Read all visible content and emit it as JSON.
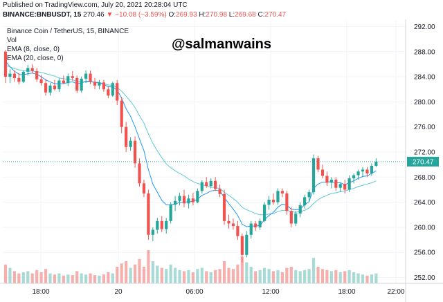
{
  "header": {
    "published": "Published on TradingView.com, July 20, 2021 20:28:04 UTC",
    "symbol": "BINANCE:BNBUSDT, 15",
    "last": "270.46",
    "arrow": "▼",
    "change": "−10.08 (−3.59%)",
    "o_label": "O:",
    "o": "269.93",
    "h_label": "H:",
    "h": "270.98",
    "l_label": "L:",
    "l": "269.68",
    "c_label": "C:",
    "c": "270.47"
  },
  "legend": {
    "title": "Binance Coin / TetherUS, 15, BINANCE",
    "vol": "Vol",
    "ema8": "EMA (8, close, 0)",
    "ema20": "EMA (20, close, 0)"
  },
  "watermark": "@salmanwains",
  "colors": {
    "up": "#26a69a",
    "down": "#ef5350",
    "vol_up": "#a8dad6",
    "vol_down": "#f5b0ae",
    "ema8": "#2196f3",
    "ema20": "#5cc8d6",
    "grid": "#f0f3fa",
    "axis": "#d1d4dc",
    "price_line": "#26a69a"
  },
  "chart_data": {
    "type": "candlestick",
    "title": "Binance Coin / TetherUS, 15, BINANCE",
    "last_price": 270.47,
    "last_price_label": "270.47",
    "y_ticks": [
      252,
      256,
      260,
      264,
      268,
      272,
      276,
      280,
      284,
      288,
      292
    ],
    "y_tick_labels": [
      "252.00",
      "256.00",
      "260.00",
      "264.00",
      "268.00",
      "272.00",
      "276.00",
      "280.00",
      "284.00",
      "288.00",
      "292.00"
    ],
    "x_ticks": [
      "18:00",
      "20",
      "06:00",
      "12:00",
      "18:00",
      "22:00"
    ],
    "candles": [
      [
        288.0,
        288.3,
        283.0,
        284.0
      ],
      [
        284.0,
        285.2,
        283.0,
        284.5
      ],
      [
        284.5,
        285.0,
        283.2,
        283.8
      ],
      [
        283.8,
        284.6,
        282.8,
        283.2
      ],
      [
        283.2,
        285.0,
        283.0,
        284.8
      ],
      [
        284.8,
        285.9,
        284.2,
        285.4
      ],
      [
        285.4,
        286.0,
        284.5,
        284.9
      ],
      [
        284.9,
        285.4,
        283.2,
        283.6
      ],
      [
        283.6,
        284.3,
        282.6,
        283.0
      ],
      [
        283.0,
        283.7,
        281.0,
        281.5
      ],
      [
        281.5,
        283.0,
        281.0,
        282.6
      ],
      [
        282.6,
        283.5,
        281.8,
        282.0
      ],
      [
        282.0,
        283.8,
        281.6,
        283.4
      ],
      [
        283.4,
        284.2,
        282.8,
        283.0
      ],
      [
        283.0,
        284.5,
        282.5,
        284.1
      ],
      [
        284.1,
        284.9,
        283.4,
        283.8
      ],
      [
        283.8,
        284.2,
        281.4,
        281.8
      ],
      [
        281.8,
        284.0,
        281.5,
        283.7
      ],
      [
        283.7,
        285.0,
        283.0,
        284.5
      ],
      [
        284.5,
        285.0,
        282.8,
        283.2
      ],
      [
        283.2,
        283.8,
        282.0,
        282.6
      ],
      [
        282.6,
        283.5,
        282.0,
        283.1
      ],
      [
        283.1,
        283.5,
        281.6,
        282.0
      ],
      [
        282.0,
        282.5,
        280.6,
        281.0
      ],
      [
        281.0,
        283.2,
        280.8,
        283.0
      ],
      [
        283.0,
        283.5,
        279.5,
        280.2
      ],
      [
        280.2,
        280.8,
        275.0,
        276.0
      ],
      [
        276.0,
        276.8,
        272.0,
        272.8
      ],
      [
        272.8,
        274.4,
        272.2,
        273.8
      ],
      [
        273.8,
        274.5,
        269.5,
        270.2
      ],
      [
        270.2,
        271.0,
        266.5,
        267.0
      ],
      [
        267.0,
        267.6,
        264.8,
        265.4
      ],
      [
        265.4,
        266.0,
        258.0,
        258.8
      ],
      [
        258.8,
        260.0,
        257.8,
        259.6
      ],
      [
        259.6,
        261.5,
        259.0,
        261.0
      ],
      [
        261.0,
        261.8,
        259.2,
        259.7
      ],
      [
        259.7,
        261.5,
        259.0,
        261.0
      ],
      [
        261.0,
        264.0,
        260.6,
        263.6
      ],
      [
        263.6,
        265.0,
        262.6,
        264.2
      ],
      [
        264.2,
        265.5,
        263.5,
        265.0
      ],
      [
        265.0,
        266.0,
        263.2,
        263.8
      ],
      [
        263.8,
        265.2,
        263.0,
        264.6
      ],
      [
        264.6,
        265.5,
        263.5,
        264.0
      ],
      [
        264.0,
        266.2,
        263.8,
        265.8
      ],
      [
        265.8,
        267.5,
        265.4,
        267.2
      ],
      [
        267.2,
        268.0,
        266.3,
        266.6
      ],
      [
        266.6,
        267.8,
        266.2,
        267.4
      ],
      [
        267.4,
        268.0,
        265.8,
        266.1
      ],
      [
        266.1,
        266.8,
        264.8,
        265.3
      ],
      [
        265.3,
        266.0,
        260.4,
        261.0
      ],
      [
        261.0,
        262.0,
        259.8,
        260.6
      ],
      [
        260.6,
        261.4,
        259.6,
        260.2
      ],
      [
        260.2,
        261.0,
        258.0,
        258.6
      ],
      [
        258.6,
        259.0,
        254.4,
        255.6
      ],
      [
        255.6,
        259.4,
        255.2,
        258.8
      ],
      [
        258.8,
        261.0,
        258.2,
        260.6
      ],
      [
        260.6,
        261.0,
        259.4,
        260.0
      ],
      [
        260.0,
        261.4,
        259.6,
        261.0
      ],
      [
        261.0,
        264.0,
        260.8,
        263.6
      ],
      [
        263.6,
        265.0,
        262.8,
        264.4
      ],
      [
        264.4,
        265.4,
        263.6,
        264.0
      ],
      [
        264.0,
        266.2,
        263.6,
        265.8
      ],
      [
        265.8,
        266.2,
        264.8,
        265.4
      ],
      [
        265.4,
        265.8,
        262.0,
        262.6
      ],
      [
        262.6,
        263.2,
        260.0,
        260.6
      ],
      [
        260.6,
        262.6,
        260.2,
        262.2
      ],
      [
        262.2,
        264.0,
        261.6,
        263.5
      ],
      [
        263.5,
        265.2,
        263.0,
        264.8
      ],
      [
        264.8,
        266.0,
        264.0,
        265.6
      ],
      [
        265.6,
        271.6,
        265.2,
        271.0
      ],
      [
        271.0,
        271.4,
        268.8,
        269.2
      ],
      [
        269.2,
        270.0,
        267.8,
        268.2
      ],
      [
        268.2,
        268.9,
        266.6,
        267.1
      ],
      [
        267.1,
        268.0,
        266.2,
        267.6
      ],
      [
        267.6,
        268.0,
        265.8,
        266.3
      ],
      [
        266.3,
        267.2,
        265.6,
        266.9
      ],
      [
        266.9,
        267.6,
        265.4,
        266.0
      ],
      [
        266.0,
        268.3,
        265.6,
        267.8
      ],
      [
        267.8,
        268.6,
        267.0,
        268.3
      ],
      [
        268.3,
        269.2,
        267.6,
        268.9
      ],
      [
        268.9,
        269.6,
        268.0,
        269.2
      ],
      [
        269.2,
        269.6,
        268.0,
        268.6
      ],
      [
        268.6,
        270.2,
        268.2,
        269.8
      ],
      [
        269.8,
        271.0,
        269.6,
        270.47
      ]
    ],
    "volumes": [
      34,
      28,
      22,
      18,
      20,
      22,
      18,
      24,
      20,
      26,
      18,
      16,
      18,
      14,
      16,
      15,
      22,
      18,
      16,
      18,
      15,
      14,
      16,
      20,
      18,
      30,
      36,
      40,
      28,
      34,
      44,
      30,
      60,
      40,
      32,
      28,
      26,
      34,
      28,
      24,
      22,
      24,
      20,
      26,
      28,
      22,
      20,
      24,
      26,
      40,
      28,
      26,
      34,
      48,
      38,
      30,
      22,
      24,
      28,
      26,
      22,
      24,
      20,
      28,
      30,
      24,
      22,
      24,
      26,
      46,
      30,
      26,
      24,
      22,
      24,
      20,
      22,
      24,
      20,
      18,
      16,
      14,
      16,
      18
    ],
    "ema8": [
      286.5,
      285.6,
      284.9,
      284.4,
      284.3,
      284.5,
      284.6,
      284.4,
      284.0,
      283.5,
      283.2,
      282.9,
      282.9,
      282.9,
      283.1,
      283.2,
      282.9,
      283.0,
      283.3,
      283.3,
      283.1,
      283.1,
      282.8,
      282.4,
      282.4,
      281.9,
      280.6,
      278.9,
      277.7,
      276.0,
      274.1,
      272.2,
      269.2,
      266.9,
      265.6,
      264.3,
      263.6,
      263.6,
      263.7,
      264.0,
      264.0,
      264.1,
      264.1,
      264.5,
      265.1,
      265.4,
      265.8,
      265.9,
      265.8,
      264.7,
      263.8,
      262.9,
      261.9,
      260.5,
      260.1,
      260.2,
      260.2,
      260.3,
      261.2,
      261.9,
      262.4,
      263.2,
      263.7,
      263.5,
      262.9,
      262.8,
      262.9,
      263.6,
      264.1,
      266.2,
      266.9,
      267.2,
      267.2,
      267.3,
      267.1,
      267.1,
      266.8,
      267.1,
      267.4,
      267.8,
      268.1,
      268.2,
      268.6,
      269.0
    ],
    "ema20": [
      285.8,
      285.6,
      285.3,
      285.1,
      285.0,
      284.9,
      284.9,
      284.8,
      284.7,
      284.5,
      284.3,
      284.1,
      283.8,
      283.7,
      283.6,
      283.5,
      283.3,
      283.2,
      283.2,
      283.2,
      283.1,
      283.0,
      282.9,
      282.7,
      282.6,
      282.3,
      281.7,
      280.9,
      280.1,
      279.1,
      277.8,
      276.6,
      274.9,
      273.4,
      272.2,
      271.1,
      270.1,
      269.5,
      269.0,
      268.6,
      268.2,
      267.7,
      267.3,
      267.0,
      266.8,
      266.6,
      266.4,
      266.3,
      266.2,
      265.6,
      265.1,
      264.6,
      264.0,
      263.2,
      262.8,
      262.5,
      262.2,
      262.0,
      262.0,
      262.1,
      262.2,
      262.5,
      262.7,
      262.7,
      262.5,
      262.4,
      262.5,
      262.7,
      263.1,
      263.8,
      264.4,
      264.8,
      265.1,
      265.4,
      265.5,
      265.7,
      265.8,
      266.0,
      266.2,
      266.5,
      266.7,
      266.9,
      267.1,
      267.4
    ]
  }
}
